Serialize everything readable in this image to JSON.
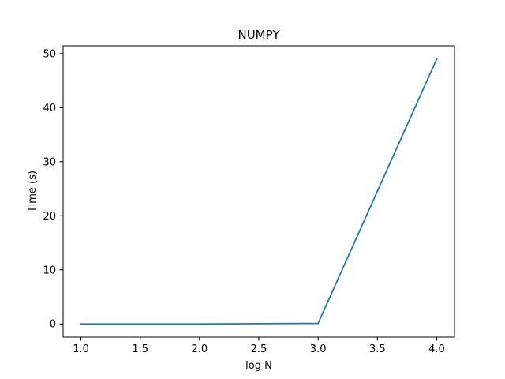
{
  "chart_data": {
    "type": "line",
    "title": "NUMPY",
    "xlabel": "log N",
    "ylabel": "Time (s)",
    "xlim": [
      0.85,
      4.15
    ],
    "ylim": [
      -2.45,
      51.45
    ],
    "x_ticks": [
      1.0,
      1.5,
      2.0,
      2.5,
      3.0,
      3.5,
      4.0
    ],
    "x_tick_labels": [
      "1.0",
      "1.5",
      "2.0",
      "2.5",
      "3.0",
      "3.5",
      "4.0"
    ],
    "y_ticks": [
      0,
      10,
      20,
      30,
      40,
      50
    ],
    "y_tick_labels": [
      "0",
      "10",
      "20",
      "30",
      "40",
      "50"
    ],
    "grid": false,
    "series": [
      {
        "x": [
          1.0,
          2.0,
          3.0,
          4.0
        ],
        "values": [
          0.0,
          0.0,
          0.1,
          49.0
        ],
        "color": "#1f77b4"
      }
    ]
  }
}
